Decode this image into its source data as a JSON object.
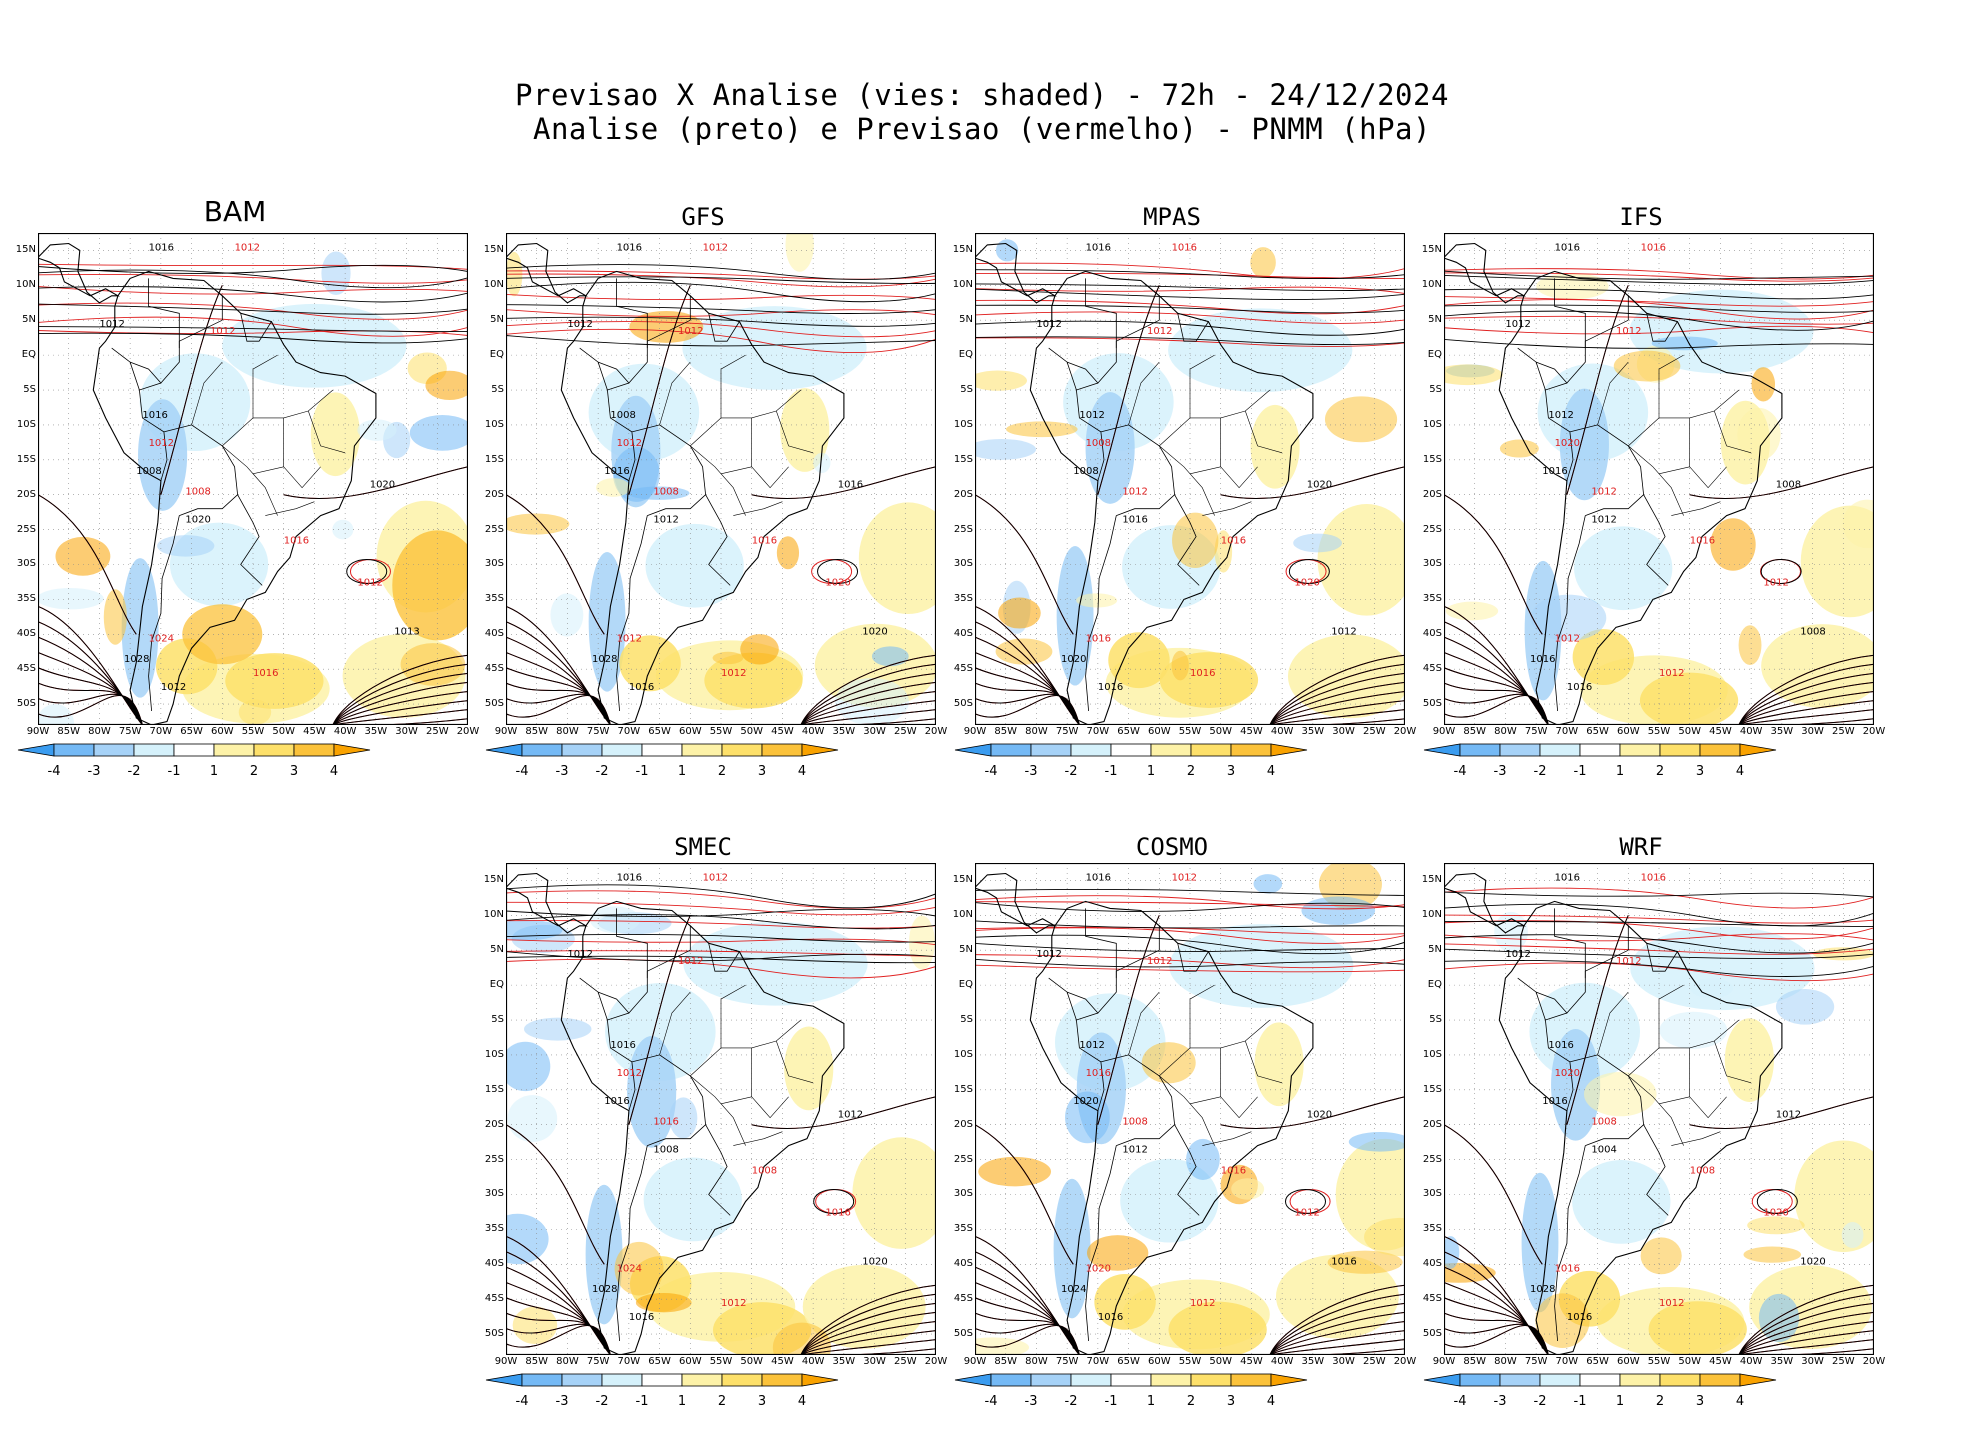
{
  "header": {
    "title_line1": "Previsao X Analise (vies: shaded) - 72h - 24/12/2024",
    "title_line2": "Analise (preto) e Previsao (vermelho) - PNMM (hPa)"
  },
  "lat_labels": [
    "15N",
    "10N",
    "5N",
    "EQ",
    "5S",
    "10S",
    "15S",
    "20S",
    "25S",
    "30S",
    "35S",
    "40S",
    "45S",
    "50S"
  ],
  "lon_labels": [
    "90W",
    "85W",
    "80W",
    "75W",
    "70W",
    "65W",
    "60W",
    "55W",
    "50W",
    "45W",
    "40W",
    "35W",
    "30W",
    "25W",
    "20W"
  ],
  "colorbar": {
    "ticks": [
      "-4",
      "-3",
      "-2",
      "-1",
      "1",
      "2",
      "3",
      "4"
    ],
    "colors": [
      "#3a9cf0",
      "#74b9f5",
      "#a6d2f7",
      "#d5f1fb",
      "#ffffff",
      "#fdf2a8",
      "#fde06a",
      "#fbc23a",
      "#f9a200"
    ]
  },
  "colors": {
    "analysis": "#000000",
    "forecast": "#e02020"
  },
  "panels": [
    {
      "id": "bam",
      "title": "BAM",
      "isobars": [
        "1016",
        "1012",
        "1012",
        "1012",
        "1016",
        "1012",
        "1008",
        "1008",
        "1020",
        "1016",
        "1020",
        "1012",
        "1013",
        "1024",
        "1028",
        "1016",
        "1012"
      ]
    },
    {
      "id": "gfs",
      "title": "GFS",
      "isobars": [
        "1016",
        "1012",
        "1012",
        "1012",
        "1008",
        "1012",
        "1016",
        "1008",
        "1012",
        "1016",
        "1016",
        "1020",
        "1020",
        "1012",
        "1028",
        "1012",
        "1016"
      ]
    },
    {
      "id": "mpas",
      "title": "MPAS",
      "isobars": [
        "1016",
        "1016",
        "1012",
        "1012",
        "1012",
        "1008",
        "1008",
        "1012",
        "1016",
        "1016",
        "1020",
        "1020",
        "1012",
        "1016",
        "1020",
        "1016",
        "1016"
      ]
    },
    {
      "id": "ifs",
      "title": "IFS",
      "isobars": [
        "1016",
        "1016",
        "1012",
        "1012",
        "1012",
        "1020",
        "1016",
        "1012",
        "1012",
        "1016",
        "1008",
        "1012",
        "1008",
        "1012",
        "1016",
        "1012",
        "1016"
      ]
    },
    {
      "id": "smec",
      "title": "SMEC",
      "isobars": [
        "1016",
        "1012",
        "1012",
        "1012",
        "1016",
        "1012",
        "1016",
        "1016",
        "1008",
        "1008",
        "1012",
        "1016",
        "1020",
        "1024",
        "1028",
        "1012",
        "1016"
      ]
    },
    {
      "id": "cosmo",
      "title": "COSMO",
      "isobars": [
        "1016",
        "1012",
        "1012",
        "1012",
        "1012",
        "1016",
        "1020",
        "1008",
        "1012",
        "1016",
        "1020",
        "1012",
        "1016",
        "1020",
        "1024",
        "1012",
        "1016"
      ]
    },
    {
      "id": "wrf",
      "title": "WRF",
      "isobars": [
        "1016",
        "1016",
        "1012",
        "1012",
        "1016",
        "1020",
        "1016",
        "1008",
        "1004",
        "1008",
        "1012",
        "1020",
        "1020",
        "1016",
        "1028",
        "1012",
        "1016"
      ]
    }
  ]
}
